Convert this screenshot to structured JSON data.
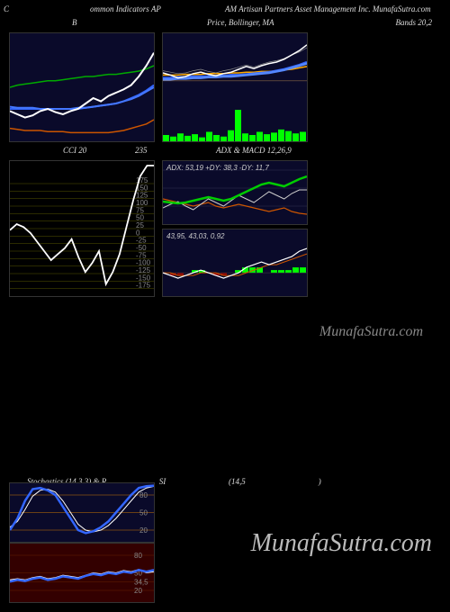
{
  "header": {
    "left": "C",
    "mid": "ommon Indicators AP",
    "right": "AM Artisan Partners Asset Management Inc. MunafaSutra.com"
  },
  "row1_titles": {
    "left": "B",
    "mid": "Price, Bollinger, MA",
    "right": "Bands 20,2"
  },
  "bollinger": {
    "bg": "#0a0a2a",
    "upper_color": "#00aa00",
    "lower_color": "#cc5500",
    "mid1_color": "#3366ff",
    "mid2_color": "#4477ff",
    "price_color": "#ffffff",
    "upper": [
      50,
      48,
      47,
      46,
      45,
      44,
      44,
      43,
      42,
      41,
      40,
      40,
      39,
      38,
      38,
      37,
      36,
      35,
      33,
      30
    ],
    "lower": [
      88,
      89,
      90,
      90,
      90,
      91,
      91,
      91,
      92,
      92,
      92,
      92,
      92,
      92,
      91,
      90,
      88,
      86,
      84,
      80
    ],
    "mid1": [
      70,
      70,
      70,
      70,
      70,
      70,
      70,
      70,
      70,
      70,
      69,
      68,
      67,
      66,
      65,
      63,
      60,
      57,
      53,
      48
    ],
    "mid2": [
      68,
      69,
      69,
      69,
      70,
      70,
      70,
      70,
      70,
      69,
      69,
      68,
      67,
      66,
      65,
      63,
      61,
      58,
      54,
      50
    ],
    "price": [
      72,
      75,
      78,
      76,
      72,
      70,
      73,
      75,
      72,
      70,
      65,
      60,
      63,
      58,
      55,
      52,
      48,
      40,
      30,
      18
    ]
  },
  "price_ma": {
    "bg": "#0a0a2a",
    "price_color": "#ffffff",
    "ma1_color": "#ffaa00",
    "ma2_color": "#3366ff",
    "ma3_color": "#5588ff",
    "thin1_color": "#888888",
    "thin2_color": "#886644",
    "vol_color": "#00ff00",
    "price": [
      55,
      58,
      62,
      60,
      56,
      54,
      57,
      59,
      56,
      54,
      50,
      46,
      49,
      45,
      42,
      40,
      36,
      30,
      24,
      16
    ],
    "ma1": [
      58,
      58,
      58,
      57,
      57,
      57,
      56,
      56,
      56,
      55,
      55,
      54,
      54,
      53,
      53,
      52,
      51,
      50,
      48,
      46
    ],
    "ma2": [
      62,
      62,
      61,
      61,
      60,
      60,
      60,
      59,
      59,
      58,
      58,
      57,
      56,
      55,
      54,
      52,
      50,
      47,
      44,
      40
    ],
    "ma3": [
      64,
      64,
      63,
      63,
      62,
      62,
      61,
      61,
      60,
      60,
      59,
      58,
      57,
      56,
      55,
      53,
      51,
      48,
      45,
      42
    ],
    "thin1": [
      52,
      54,
      56,
      55,
      52,
      50,
      53,
      55,
      52,
      50,
      47,
      44,
      47,
      43,
      40,
      38,
      35,
      30,
      26,
      20
    ],
    "thin2": [
      66,
      66,
      66,
      66,
      66,
      66,
      66,
      66,
      66,
      66,
      66,
      66,
      66,
      66,
      66,
      66,
      66,
      66,
      66,
      66
    ],
    "volumes": [
      8,
      6,
      10,
      7,
      9,
      5,
      12,
      8,
      6,
      14,
      40,
      10,
      8,
      12,
      9,
      11,
      15,
      13,
      10,
      12
    ]
  },
  "row2_titles": {
    "left": "CCI 20",
    "left_val": "235",
    "right": "ADX & MACD 12,26,9"
  },
  "cci": {
    "bg": "#000000",
    "line_color": "#ffffff",
    "grid_color": "#555500",
    "ticks": [
      175,
      150,
      125,
      100,
      75,
      50,
      25,
      0,
      -25,
      -50,
      -75,
      -100,
      -125,
      -150,
      -175
    ],
    "ylim": [
      -200,
      250
    ],
    "series": [
      20,
      40,
      30,
      10,
      -20,
      -50,
      -80,
      -60,
      -40,
      -10,
      -70,
      -120,
      -90,
      -50,
      -160,
      -120,
      -60,
      30,
      120,
      200,
      235,
      235
    ]
  },
  "adx": {
    "bg": "#0a0a2a",
    "label": "ADX: 53,19 +DY: 38,3 -DY: 11,7",
    "adx_color": "#00cc00",
    "pdi_color": "#cccccc",
    "ndi_color": "#cc5500",
    "grid_color": "#333355",
    "adx_series": [
      25,
      24,
      23,
      24,
      26,
      28,
      30,
      28,
      26,
      28,
      32,
      36,
      40,
      44,
      46,
      44,
      42,
      46,
      50,
      53
    ],
    "pdi_series": [
      18,
      22,
      25,
      20,
      16,
      22,
      28,
      24,
      20,
      26,
      32,
      28,
      24,
      30,
      36,
      32,
      28,
      34,
      38,
      38
    ],
    "ndi_series": [
      28,
      26,
      24,
      22,
      20,
      22,
      24,
      20,
      18,
      20,
      22,
      20,
      18,
      16,
      14,
      16,
      18,
      14,
      12,
      11
    ]
  },
  "macd": {
    "bg": "#0a0a2a",
    "label": "43,95, 43,03, 0,92",
    "macd_color": "#ffffff",
    "signal_color": "#cc5500",
    "hist_pos_color": "#00ff00",
    "hist_neg_color": "#880000",
    "macd_series": [
      0,
      -1,
      -2,
      -1,
      0,
      1,
      0,
      -1,
      -2,
      -1,
      0,
      2,
      3,
      4,
      3,
      4,
      5,
      6,
      8,
      9
    ],
    "signal_series": [
      0,
      0,
      -1,
      -1,
      -1,
      0,
      0,
      0,
      -1,
      -1,
      -1,
      0,
      1,
      2,
      3,
      3,
      4,
      5,
      6,
      7
    ],
    "hist_series": [
      0,
      -1,
      -1,
      0,
      1,
      1,
      0,
      -1,
      -1,
      0,
      1,
      2,
      2,
      2,
      0,
      1,
      1,
      1,
      2,
      2
    ]
  },
  "row3_titles": {
    "full": "Stochastics (14,3,3) & R                          SI                               (14,5                                    )"
  },
  "stoch": {
    "bg": "#0a0a2a",
    "k_color": "#3366ff",
    "d_color": "#ffffff",
    "grid_color": "#cc7700",
    "levels": [
      80,
      50,
      20
    ],
    "k_series": [
      20,
      40,
      70,
      90,
      92,
      88,
      80,
      60,
      40,
      20,
      15,
      18,
      25,
      35,
      50,
      65,
      80,
      92,
      95,
      96
    ],
    "d_series": [
      25,
      35,
      55,
      78,
      88,
      90,
      85,
      70,
      50,
      30,
      20,
      17,
      20,
      28,
      40,
      55,
      70,
      85,
      92,
      95
    ]
  },
  "rsi": {
    "bg": "#330000",
    "line1_color": "#3366ff",
    "line2_color": "#ffffff",
    "grid_color": "#662200",
    "levels": [
      80,
      50,
      34.5,
      20
    ],
    "level_labels": [
      "80",
      "50",
      "34,5",
      "20"
    ],
    "series1": [
      35,
      38,
      36,
      40,
      42,
      38,
      40,
      44,
      42,
      40,
      45,
      48,
      46,
      50,
      48,
      52,
      50,
      55,
      52,
      55
    ],
    "series2": [
      38,
      40,
      38,
      42,
      44,
      40,
      42,
      46,
      44,
      42,
      46,
      50,
      48,
      52,
      50,
      54,
      52,
      56,
      50,
      52
    ]
  },
  "watermark": "MunafaSutra.com"
}
